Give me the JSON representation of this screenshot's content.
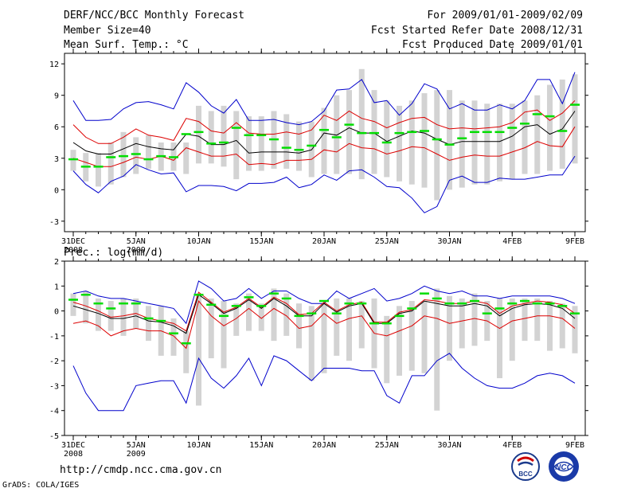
{
  "header": {
    "title": "DERF/NCC/BCC Monthly Forecast",
    "member_size": "Member Size=40",
    "variable_top": "Mean Surf. Temp.: °C",
    "period": "For 2009/01/01-2009/02/09",
    "refer_date": "Fcst Started Refer Date 2008/12/31",
    "produced_date": "Fcst Produced Date 2009/01/01"
  },
  "bottom_panel_label": "Prec.: log(mm/d)",
  "footer": {
    "url": "http://cmdp.ncc.cma.gov.cn",
    "grads": "GrADS: COLA/IGES",
    "logo_bcc": "BCC",
    "logo_ncc": "NCC"
  },
  "colors": {
    "box": "#d3d3d3",
    "median": "#00dd00",
    "mean": "#000000",
    "spread": "#dd0000",
    "envelope": "#0000cc"
  },
  "chart_data": [
    {
      "type": "box",
      "title": "Mean Surf. Temp.: °C",
      "xlabel": "",
      "ylabel": "",
      "ylim": [
        -4,
        13
      ],
      "yticks": [
        -3,
        0,
        3,
        6,
        9,
        12
      ],
      "ytick_labels": [
        "-3",
        "0",
        "3",
        "6",
        "9",
        "12"
      ],
      "xticks": [
        1,
        6,
        11,
        16,
        21,
        26,
        31,
        36,
        41
      ],
      "xtick_labels": [
        "31DEC",
        "5JAN",
        "10JAN",
        "15JAN",
        "20JAN",
        "25JAN",
        "30JAN",
        "4FEB",
        "9FEB"
      ],
      "xtick_sublabels": [
        "2008",
        "2009",
        "",
        "",
        "",
        "",
        "",
        "",
        ""
      ],
      "x": [
        1,
        2,
        3,
        4,
        5,
        6,
        7,
        8,
        9,
        10,
        11,
        12,
        13,
        14,
        15,
        16,
        17,
        18,
        19,
        20,
        21,
        22,
        23,
        24,
        25,
        26,
        27,
        28,
        29,
        30,
        31,
        32,
        33,
        34,
        35,
        36,
        37,
        38,
        39,
        40,
        41
      ],
      "box_low": [
        1.8,
        0.8,
        0.3,
        0.5,
        1.2,
        1.5,
        2,
        1.8,
        1.8,
        1.5,
        2.5,
        2.5,
        2.2,
        1,
        1.8,
        1.8,
        2,
        2,
        1.8,
        1.2,
        1.5,
        1.5,
        1.5,
        1,
        1.5,
        1.2,
        0.8,
        0.5,
        0.2,
        -1,
        0,
        0.2,
        0.5,
        0.5,
        0.8,
        1,
        1.5,
        1.5,
        1.8,
        2,
        2.5
      ],
      "box_high": [
        3.8,
        3.5,
        3.5,
        4.5,
        5.5,
        5,
        5.2,
        4.5,
        4.5,
        4.5,
        8,
        7.5,
        8,
        7.5,
        7,
        7,
        7.5,
        7.2,
        6.5,
        6.5,
        7.8,
        9,
        9.5,
        11.5,
        9.5,
        8.5,
        8,
        8.5,
        9.2,
        9.5,
        9.5,
        8.5,
        8.5,
        8.2,
        8.2,
        8.2,
        8.5,
        9,
        10,
        10.5,
        11
      ],
      "median": [
        2.9,
        2.2,
        2.2,
        3.1,
        3.2,
        3.4,
        2.9,
        3.2,
        3.1,
        5.3,
        5.5,
        4.4,
        4.5,
        5.9,
        5.2,
        5.2,
        4.8,
        4,
        3.8,
        4.2,
        5.7,
        5,
        6.2,
        5.4,
        5.4,
        4.5,
        5.4,
        5.5,
        5.6,
        4.8,
        4.3,
        4.9,
        5.5,
        5.5,
        5.5,
        5.9,
        6.3,
        7.2,
        7,
        5.6,
        8.1
      ],
      "mean": [
        4.5,
        3.7,
        3.4,
        3.4,
        3.9,
        4.4,
        4.1,
        3.9,
        3.8,
        5.3,
        5.1,
        4.3,
        4.3,
        4.7,
        3.5,
        3.6,
        3.6,
        3.6,
        3.5,
        3.8,
        5.4,
        5.2,
        5.9,
        5.4,
        5.4,
        4.6,
        5.1,
        5.6,
        5.4,
        4.8,
        4.3,
        4.6,
        4.6,
        4.6,
        4.6,
        5.1,
        6,
        6.2,
        5.3,
        5.8,
        7.5
      ],
      "upper": [
        6.2,
        5,
        4.4,
        4.4,
        5,
        5.8,
        5.2,
        5,
        4.7,
        6.8,
        6.5,
        5.6,
        5.4,
        6.4,
        5.4,
        5.3,
        5.3,
        5.5,
        5.3,
        5.7,
        7.1,
        6.6,
        7.5,
        6.8,
        6.5,
        5.9,
        6.4,
        6.8,
        6.9,
        6.2,
        5.8,
        5.9,
        5.8,
        5.9,
        6,
        6.4,
        7.4,
        7.6,
        6.6,
        7.3,
        8.5
      ],
      "lower": [
        3,
        2.6,
        2.2,
        2.2,
        2.6,
        3.1,
        2.9,
        3.2,
        2.8,
        4,
        3.6,
        3.2,
        3.2,
        3.4,
        2.4,
        2.5,
        2.4,
        2.8,
        2.8,
        2.9,
        3.8,
        3.6,
        4.4,
        4,
        3.9,
        3.4,
        3.7,
        4.1,
        4,
        3.4,
        2.8,
        3.1,
        3.3,
        3.2,
        3.2,
        3.6,
        4,
        4.6,
        4.2,
        4.1,
        6
      ],
      "env_high": [
        8.5,
        6.6,
        6.6,
        6.7,
        7.7,
        8.3,
        8.4,
        8.1,
        7.7,
        10.2,
        9.3,
        8,
        7.3,
        8.6,
        6.6,
        6.6,
        6.7,
        6.4,
        6.2,
        6.5,
        7.5,
        9.5,
        9.6,
        10.5,
        8.3,
        8.5,
        7.1,
        8.2,
        10.1,
        9.6,
        7.7,
        8.2,
        7.6,
        7.6,
        8.1,
        7.7,
        8.5,
        10.5,
        10.5,
        8.2,
        11.2
      ],
      "env_low": [
        1.8,
        0.5,
        -0.3,
        0.8,
        1.3,
        2.4,
        1.9,
        1.5,
        1.6,
        -0.2,
        0.4,
        0.4,
        0.3,
        -0.1,
        0.6,
        0.6,
        0.7,
        1.2,
        0.2,
        0.5,
        1.4,
        0.9,
        1.8,
        1.9,
        1.2,
        0.3,
        0.2,
        -0.8,
        -2.2,
        -1.6,
        0.9,
        1.3,
        0.7,
        0.7,
        1.1,
        1,
        1,
        1.2,
        1.4,
        1.4,
        3.2
      ]
    },
    {
      "type": "box",
      "title": "Prec.: log(mm/d)",
      "xlabel": "",
      "ylabel": "",
      "ylim": [
        -5,
        2
      ],
      "yticks": [
        -5,
        -4,
        -3,
        -2,
        -1,
        0,
        1,
        2
      ],
      "ytick_labels": [
        "-5",
        "-4",
        "-3",
        "-2",
        "-1",
        "0",
        "1",
        "2"
      ],
      "xticks": [
        1,
        6,
        11,
        16,
        21,
        26,
        31,
        36,
        41
      ],
      "xtick_labels": [
        "31DEC",
        "5JAN",
        "10JAN",
        "15JAN",
        "20JAN",
        "25JAN",
        "30JAN",
        "4FEB",
        "9FEB"
      ],
      "xtick_sublabels": [
        "2008",
        "2009",
        "",
        "",
        "",
        "",
        "",
        "",
        ""
      ],
      "x": [
        1,
        2,
        3,
        4,
        5,
        6,
        7,
        8,
        9,
        10,
        11,
        12,
        13,
        14,
        15,
        16,
        17,
        18,
        19,
        20,
        21,
        22,
        23,
        24,
        25,
        26,
        27,
        28,
        29,
        30,
        31,
        32,
        33,
        34,
        35,
        36,
        37,
        38,
        39,
        40,
        41
      ],
      "box_low": [
        -0.2,
        -0.5,
        -0.8,
        -0.8,
        -1,
        -0.7,
        -1.2,
        -1.8,
        -1.8,
        -2.5,
        -3.8,
        -1.9,
        -2.3,
        -1,
        -0.8,
        -0.8,
        -1.2,
        -1,
        -1.5,
        -2.8,
        -2.5,
        -1.8,
        -2,
        -1.5,
        -2.3,
        -2.9,
        -2.6,
        -2.4,
        -2.5,
        -4,
        -2,
        -1.5,
        -1.4,
        -1.2,
        -2.7,
        -2,
        -1.2,
        -1.2,
        -1.6,
        -1.5,
        -1.7
      ],
      "box_high": [
        0.7,
        0.8,
        0.5,
        0.4,
        0.5,
        0.5,
        0.2,
        0.2,
        -0.3,
        -0.8,
        0.7,
        0.5,
        0.4,
        0.3,
        0.7,
        0.3,
        0.9,
        0.7,
        0.3,
        0.2,
        0.3,
        0.5,
        0.5,
        0.4,
        0.5,
        -0.2,
        0.2,
        0.4,
        0.4,
        0.9,
        0.6,
        0.5,
        0.7,
        0.4,
        0.5,
        0.5,
        0.5,
        0.5,
        0.4,
        0.3,
        0.2
      ],
      "median": [
        0.45,
        0.65,
        0.3,
        0.1,
        0.3,
        0.3,
        -0.3,
        -0.4,
        -0.9,
        -1.3,
        0.65,
        0.25,
        -0.2,
        0.2,
        0.55,
        0.2,
        0.7,
        0.5,
        -0.2,
        -0.1,
        0.4,
        -0.1,
        0.3,
        0.3,
        -0.5,
        -0.5,
        -0.2,
        0.1,
        0.7,
        0.5,
        0.3,
        0.3,
        0.4,
        -0.1,
        0.1,
        0.3,
        0.4,
        0.3,
        0.3,
        0.2,
        -0.1
      ],
      "mean": [
        0.2,
        0.05,
        -0.1,
        -0.3,
        -0.3,
        -0.2,
        -0.4,
        -0.45,
        -0.6,
        -0.9,
        0.65,
        0.3,
        -0.1,
        0.1,
        0.45,
        0.1,
        0.5,
        0.2,
        -0.2,
        -0.2,
        0.3,
        -0.05,
        0.2,
        0.3,
        -0.5,
        -0.5,
        -0.1,
        0,
        0.4,
        0.3,
        0.2,
        0.2,
        0.3,
        0.2,
        -0.2,
        0.1,
        0.25,
        0.3,
        0.25,
        0.1,
        -0.3
      ],
      "upper": [
        0.35,
        0.2,
        0,
        -0.25,
        -0.2,
        -0.1,
        -0.3,
        -0.4,
        -0.5,
        -0.8,
        0.75,
        0.35,
        -0.05,
        0.15,
        0.5,
        0.15,
        0.55,
        0.3,
        -0.15,
        -0.1,
        0.35,
        0,
        0.25,
        0.35,
        -0.45,
        -0.45,
        -0.05,
        0.05,
        0.45,
        0.4,
        0.3,
        0.3,
        0.4,
        0.3,
        -0.1,
        0.2,
        0.3,
        0.4,
        0.35,
        0.25,
        -0.1
      ],
      "lower": [
        -0.5,
        -0.4,
        -0.6,
        -1,
        -0.8,
        -0.7,
        -0.8,
        -0.8,
        -1,
        -1.5,
        0.4,
        -0.2,
        -0.6,
        -0.3,
        0.1,
        -0.3,
        0.1,
        -0.2,
        -0.7,
        -0.6,
        -0.1,
        -0.5,
        -0.3,
        -0.2,
        -0.9,
        -1,
        -0.8,
        -0.6,
        -0.2,
        -0.3,
        -0.5,
        -0.4,
        -0.3,
        -0.4,
        -0.7,
        -0.4,
        -0.3,
        -0.2,
        -0.2,
        -0.3,
        -0.7
      ],
      "env_high": [
        0.7,
        0.8,
        0.6,
        0.5,
        0.5,
        0.4,
        0.3,
        0.2,
        0.1,
        -0.5,
        1.2,
        0.9,
        0.4,
        0.5,
        0.9,
        0.5,
        0.8,
        0.8,
        0.5,
        0.3,
        0.3,
        0.8,
        0.5,
        0.7,
        0.9,
        0.4,
        0.5,
        0.7,
        1,
        0.8,
        0.7,
        0.8,
        0.6,
        0.6,
        0.5,
        0.6,
        0.6,
        0.6,
        0.6,
        0.5,
        0.3
      ],
      "env_low": [
        -2.2,
        -3.3,
        -4,
        -4,
        -4,
        -3,
        -2.9,
        -2.8,
        -2.8,
        -3.7,
        -1.9,
        -2.7,
        -3.1,
        -2.6,
        -1.9,
        -3,
        -1.8,
        -2,
        -2.4,
        -2.8,
        -2.3,
        -2.3,
        -2.3,
        -2.4,
        -2.4,
        -3.4,
        -3.7,
        -2.6,
        -2.6,
        -2,
        -1.7,
        -2.3,
        -2.7,
        -3,
        -3.1,
        -3.1,
        -2.9,
        -2.6,
        -2.5,
        -2.6,
        -2.9
      ]
    }
  ]
}
